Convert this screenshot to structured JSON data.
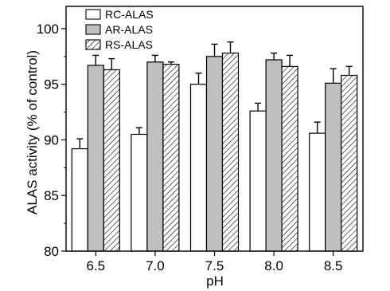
{
  "chart_data": {
    "type": "bar",
    "title": "",
    "xlabel": "pH",
    "ylabel": "ALAS activity (% of control)",
    "categories": [
      "6.5",
      "7.0",
      "7.5",
      "8.0",
      "8.5"
    ],
    "ylim": [
      80,
      102
    ],
    "yticks": [
      80,
      85,
      90,
      95,
      100
    ],
    "yticks_labels": [
      "80",
      "85",
      "90",
      "95",
      "100"
    ],
    "grid": false,
    "legend_position": "top-left",
    "series": [
      {
        "name": "RC-ALAS",
        "fill": "#ffffff",
        "pattern": "none",
        "values": [
          89.2,
          90.5,
          95.0,
          92.6,
          90.6
        ],
        "errors": [
          0.9,
          0.6,
          1.0,
          0.7,
          1.0
        ]
      },
      {
        "name": "AR-ALAS",
        "fill": "#bfbfbf",
        "pattern": "none",
        "values": [
          96.7,
          97.0,
          97.5,
          97.2,
          95.1
        ],
        "errors": [
          0.9,
          0.6,
          1.1,
          0.6,
          1.3
        ]
      },
      {
        "name": "RS-ALAS",
        "fill": "#ffffff",
        "pattern": "diagonal-hatch",
        "values": [
          96.3,
          96.8,
          97.8,
          96.6,
          95.8
        ],
        "errors": [
          1.0,
          0.2,
          1.0,
          1.0,
          0.8
        ]
      }
    ]
  }
}
